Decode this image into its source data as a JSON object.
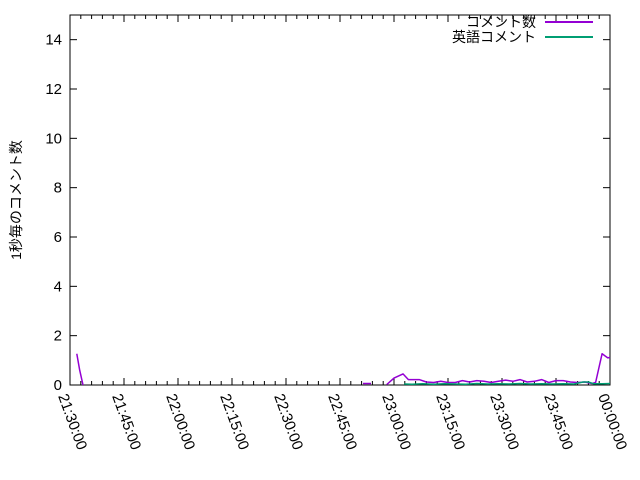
{
  "chart_data": {
    "type": "line",
    "title": "",
    "xlabel": "",
    "ylabel": "1秒毎のコメント数",
    "background_color": "#ffffff",
    "axis_color": "#000000",
    "grid": false,
    "legend_position": "top-right-inside",
    "ylim": [
      0,
      15
    ],
    "ytick_values": [
      0,
      2,
      4,
      6,
      8,
      10,
      12,
      14
    ],
    "x_range_minutes": [
      0,
      150
    ],
    "x_start_time": "21:30:00",
    "x_end_time": "00:00:00",
    "xtick_minutes": [
      0,
      15,
      30,
      45,
      60,
      75,
      90,
      105,
      120,
      135,
      150
    ],
    "xtick_labels": [
      "21:30:00",
      "21:45:00",
      "22:00:00",
      "22:15:00",
      "22:30:00",
      "22:45:00",
      "23:00:00",
      "23:15:00",
      "23:30:00",
      "23:45:00",
      "00:00:00"
    ],
    "x_minor_step_minutes": 3,
    "series": [
      {
        "name": "コメント数",
        "color": "#9400d3",
        "segments": [
          [
            [
              1.9,
              1.27
            ],
            [
              2.7,
              0.6
            ],
            [
              3.6,
              0.0
            ]
          ],
          [
            [
              81.4,
              0.06
            ],
            [
              83.6,
              0.06
            ]
          ],
          [
            [
              88.0,
              0.02
            ],
            [
              90.0,
              0.28
            ],
            [
              92.5,
              0.45
            ],
            [
              94.0,
              0.22
            ],
            [
              97.0,
              0.22
            ],
            [
              99.0,
              0.12
            ],
            [
              101.0,
              0.1
            ],
            [
              103.0,
              0.15
            ],
            [
              105.0,
              0.1
            ],
            [
              107.0,
              0.1
            ],
            [
              109.0,
              0.18
            ],
            [
              111.0,
              0.12
            ],
            [
              113.0,
              0.18
            ],
            [
              115.0,
              0.15
            ],
            [
              117.0,
              0.1
            ],
            [
              119.0,
              0.15
            ],
            [
              121.0,
              0.2
            ],
            [
              123.0,
              0.15
            ],
            [
              125.0,
              0.22
            ],
            [
              127.0,
              0.12
            ],
            [
              129.0,
              0.15
            ],
            [
              131.0,
              0.22
            ],
            [
              133.0,
              0.1
            ],
            [
              135.0,
              0.18
            ],
            [
              137.0,
              0.18
            ],
            [
              139.0,
              0.12
            ],
            [
              141.0,
              0.1
            ],
            [
              143.0,
              0.12
            ],
            [
              145.0,
              0.06
            ],
            [
              146.0,
              0.1
            ],
            [
              147.0,
              0.75
            ],
            [
              147.8,
              1.27
            ],
            [
              148.6,
              1.18
            ],
            [
              149.4,
              1.1
            ],
            [
              150.0,
              1.12
            ]
          ]
        ]
      },
      {
        "name": "英語コメント",
        "color": "#009e73",
        "segments": [
          [
            [
              92.8,
              0.04
            ],
            [
              95.0,
              0.03
            ],
            [
              98.0,
              0.05
            ],
            [
              101.0,
              0.03
            ],
            [
              104.0,
              0.05
            ],
            [
              107.0,
              0.04
            ],
            [
              110.0,
              0.03
            ],
            [
              113.0,
              0.06
            ],
            [
              116.0,
              0.04
            ],
            [
              119.0,
              0.05
            ],
            [
              122.0,
              0.04
            ],
            [
              125.0,
              0.06
            ],
            [
              128.0,
              0.04
            ],
            [
              131.0,
              0.05
            ],
            [
              134.0,
              0.04
            ],
            [
              137.0,
              0.05
            ],
            [
              140.0,
              0.04
            ],
            [
              142.5,
              0.12
            ],
            [
              144.0,
              0.12
            ],
            [
              145.5,
              0.05
            ],
            [
              148.0,
              0.05
            ],
            [
              150.0,
              0.06
            ]
          ]
        ]
      }
    ]
  }
}
